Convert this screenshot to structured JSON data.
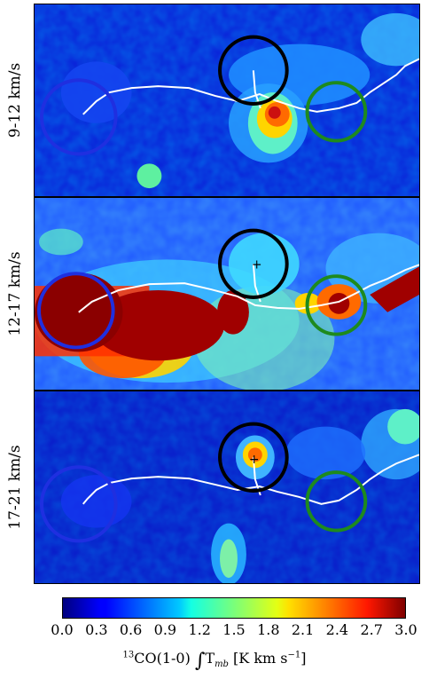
{
  "panels": [
    {
      "label": "9-12 km/s",
      "key": "p1"
    },
    {
      "label": "12-17 km/s",
      "key": "p2"
    },
    {
      "label": "17-21 km/s",
      "key": "p3"
    }
  ],
  "colorbar": {
    "ticks": [
      "0.0",
      "0.3",
      "0.6",
      "0.9",
      "1.2",
      "1.5",
      "1.8",
      "2.1",
      "2.4",
      "2.7",
      "3.0"
    ],
    "range": [
      0.0,
      3.0
    ],
    "label": "13CO(1-0) ∫T_mb [K km s⁻¹]",
    "label_iso": "13",
    "label_main": "CO(1-0) ",
    "label_int": "∫",
    "label_t": "T",
    "label_sub": "mb",
    "label_unit": " [K km s",
    "label_exp": "−1",
    "label_close": "]",
    "colormap": "jet"
  },
  "chart_data": {
    "type": "heatmap",
    "panels": [
      "9-12 km/s",
      "12-17 km/s",
      "17-21 km/s"
    ],
    "colorbar_range": [
      0.0,
      3.0
    ],
    "colorbar_ticks": [
      0.0,
      0.3,
      0.6,
      0.9,
      1.2,
      1.5,
      1.8,
      2.1,
      2.4,
      2.7,
      3.0
    ],
    "circle_colors": [
      "#1f2fe0",
      "#000000",
      "#1e8a1e"
    ],
    "filament_color": "#ffffff"
  }
}
